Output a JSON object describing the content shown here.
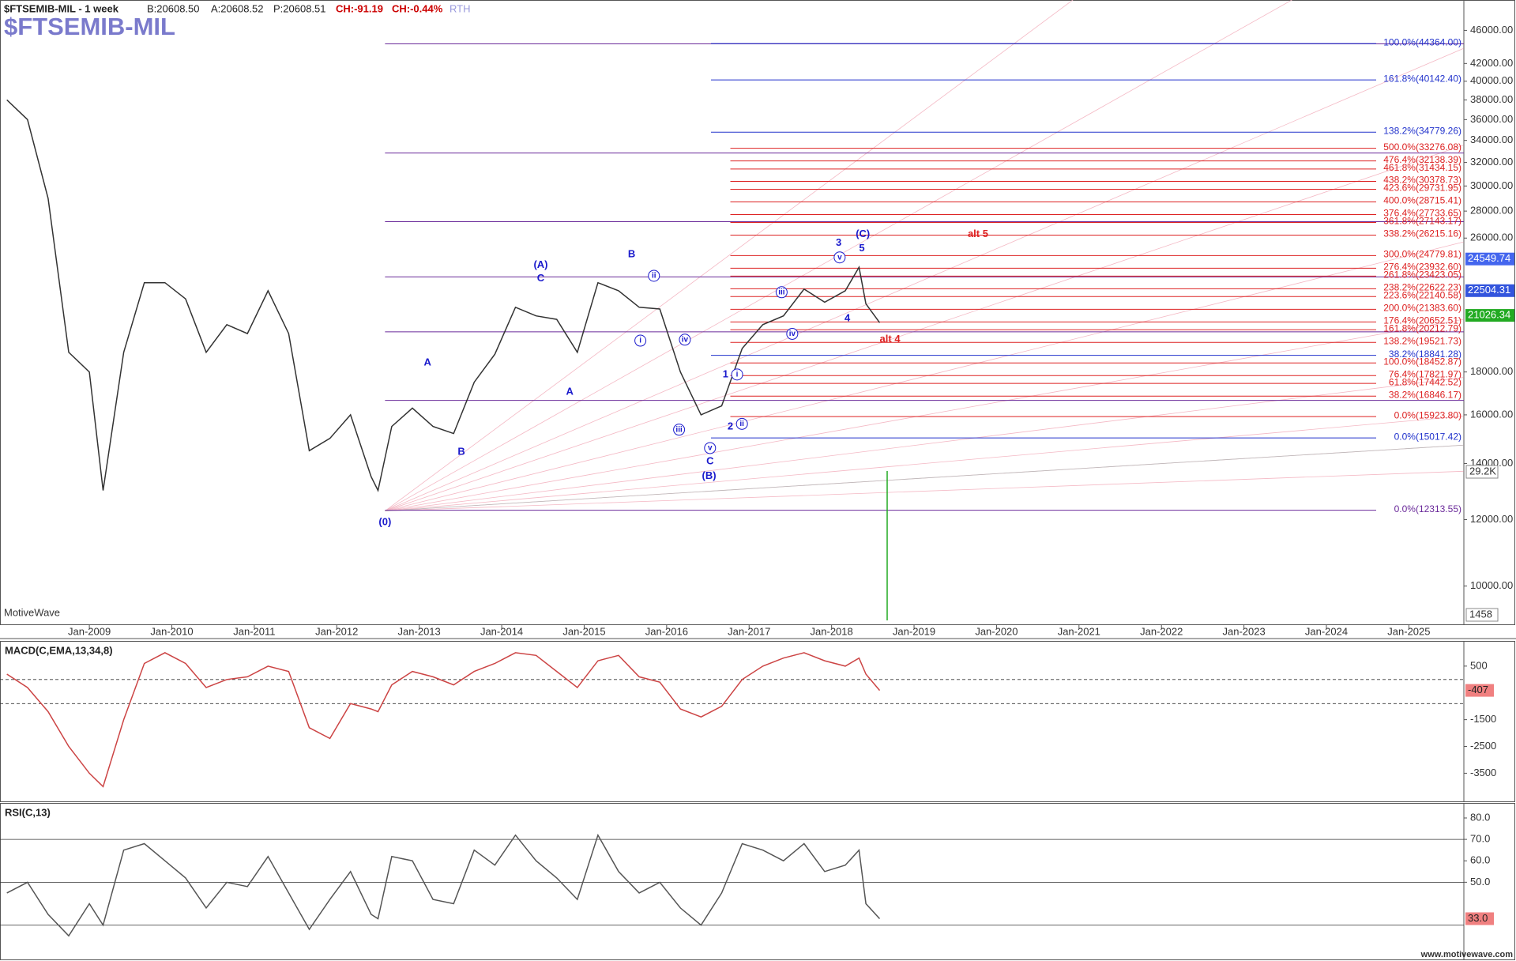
{
  "header": {
    "symbol": "$FTSEMIB-MIL - 1 week",
    "bid": "B:20608.50",
    "ask": "A:20608.52",
    "price": "P:20608.51",
    "change": "CH:-91.19",
    "change_pct": "CH:-0.44%",
    "session": "RTH",
    "watermark": "MotiveWave",
    "volume_label": "29.2K",
    "volume_scale": "1458",
    "footer": "www.motivewave.com"
  },
  "chart_data": [
    {
      "type": "line",
      "title": "$FTSEMIB-MIL",
      "log": true,
      "color": "#333333",
      "xlim": [
        "2007-12",
        "2025-09"
      ],
      "ylim": [
        9000,
        50000
      ],
      "xticks": [
        {
          "value": "2009-01",
          "label": "Jan-2009"
        },
        {
          "value": "2010-01",
          "label": "Jan-2010"
        },
        {
          "value": "2011-01",
          "label": "Jan-2011"
        },
        {
          "value": "2012-01",
          "label": "Jan-2012"
        },
        {
          "value": "2013-01",
          "label": "Jan-2013"
        },
        {
          "value": "2014-01",
          "label": "Jan-2014"
        },
        {
          "value": "2015-01",
          "label": "Jan-2015"
        },
        {
          "value": "2016-01",
          "label": "Jan-2016"
        },
        {
          "value": "2017-01",
          "label": "Jan-2017"
        },
        {
          "value": "2018-01",
          "label": "Jan-2018"
        },
        {
          "value": "2019-01",
          "label": "Jan-2019"
        },
        {
          "value": "2020-01",
          "label": "Jan-2020"
        },
        {
          "value": "2021-01",
          "label": "Jan-2021"
        },
        {
          "value": "2022-01",
          "label": "Jan-2022"
        },
        {
          "value": "2023-01",
          "label": "Jan-2023"
        },
        {
          "value": "2024-01",
          "label": "Jan-2024"
        },
        {
          "value": "2025-01",
          "label": "Jan-2025"
        }
      ],
      "yticks": [
        {
          "value": 46000,
          "label": "46000.00"
        },
        {
          "value": 42000,
          "label": "42000.00"
        },
        {
          "value": 40000,
          "label": "40000.00"
        },
        {
          "value": 38000,
          "label": "38000.00"
        },
        {
          "value": 36000,
          "label": "36000.00"
        },
        {
          "value": 34000,
          "label": "34000.00"
        },
        {
          "value": 32000,
          "label": "32000.00"
        },
        {
          "value": 30000,
          "label": "30000.00"
        },
        {
          "value": 28000,
          "label": "28000.00"
        },
        {
          "value": 26000,
          "label": "26000.00"
        },
        {
          "value": 18000,
          "label": "18000.00"
        },
        {
          "value": 16000,
          "label": "16000.00"
        },
        {
          "value": 14000,
          "label": "14000.00"
        },
        {
          "value": 12000,
          "label": "12000.00"
        },
        {
          "value": 10000,
          "label": "10000.00"
        }
      ],
      "x": [
        "2008-01",
        "2008-04",
        "2008-07",
        "2008-10",
        "2009-01",
        "2009-03",
        "2009-06",
        "2009-09",
        "2009-12",
        "2010-03",
        "2010-06",
        "2010-09",
        "2010-12",
        "2011-03",
        "2011-06",
        "2011-09",
        "2011-12",
        "2012-03",
        "2012-06",
        "2012-07",
        "2012-09",
        "2012-12",
        "2013-03",
        "2013-06",
        "2013-09",
        "2013-12",
        "2014-03",
        "2014-06",
        "2014-09",
        "2014-12",
        "2015-03",
        "2015-06",
        "2015-09",
        "2015-12",
        "2016-03",
        "2016-06",
        "2016-09",
        "2016-12",
        "2017-03",
        "2017-06",
        "2017-09",
        "2017-12",
        "2018-03",
        "2018-05",
        "2018-06",
        "2018-08"
      ],
      "values": [
        38000,
        36000,
        29000,
        19000,
        18000,
        13000,
        19000,
        23000,
        23000,
        22000,
        19000,
        20500,
        20000,
        22500,
        20000,
        14500,
        15000,
        16000,
        13500,
        13000,
        15500,
        16300,
        15500,
        15200,
        17500,
        18900,
        21500,
        21000,
        20800,
        19000,
        23000,
        22500,
        21500,
        21400,
        18000,
        16000,
        16400,
        19200,
        20500,
        21000,
        22600,
        21800,
        22500,
        24000,
        21700,
        20608
      ],
      "level_sets": [
        {
          "color": "#6a2a9a",
          "levels": [
            44320,
            32840,
            27200,
            23370,
            20100,
            16650,
            {
              "value": 12313.55,
              "label": "0.0%(12313.55)"
            }
          ]
        },
        {
          "color": "#2233cc",
          "levels": [
            {
              "value": 44364,
              "label": "100.0%(44364.00)"
            },
            {
              "value": 40142.4,
              "label": "161.8%(40142.40)"
            },
            {
              "value": 34779.26,
              "label": "138.2%(34779.26)"
            },
            {
              "value": 18841.28,
              "label": "38.2%(18841.28)"
            },
            {
              "value": 15017.42,
              "label": "0.0%(15017.42)"
            }
          ]
        },
        {
          "color": "#dd2222",
          "levels": [
            {
              "value": 33276.08,
              "label": "500.0%(33276.08)"
            },
            {
              "value": 32138.39,
              "label": "476.4%(32138.39)"
            },
            {
              "value": 31434.15,
              "label": "461.8%(31434.15)"
            },
            {
              "value": 30378.73,
              "label": "438.2%(30378.73)"
            },
            {
              "value": 29731.95,
              "label": "423.6%(29731.95)"
            },
            {
              "value": 28715.41,
              "label": "400.0%(28715.41)"
            },
            {
              "value": 27733.65,
              "label": "376.4%(27733.65)"
            },
            {
              "value": 27143.17,
              "label": "361.8%(27143.17)"
            },
            {
              "value": 26215.16,
              "label": "338.2%(26215.16)"
            },
            {
              "value": 24779.81,
              "label": "300.0%(24779.81)"
            },
            {
              "value": 23932.6,
              "label": "276.4%(23932.60)"
            },
            {
              "value": 23423.05,
              "label": "261.8%(23423.05)"
            },
            {
              "value": 22622.23,
              "label": "238.2%(22622.23)"
            },
            {
              "value": 22140.58,
              "label": "223.6%(22140.58)"
            },
            {
              "value": 21383.6,
              "label": "200.0%(21383.60)"
            },
            {
              "value": 20652.51,
              "label": "176.4%(20652.51)"
            },
            {
              "value": 20212.79,
              "label": "161.8%(20212.79)"
            },
            {
              "value": 19521.73,
              "label": "138.2%(19521.73)"
            },
            {
              "value": 18452.87,
              "label": "100.0%(18452.87)"
            },
            {
              "value": 17821.97,
              "label": "76.4%(17821.97)"
            },
            {
              "value": 17442.52,
              "label": "61.8%(17442.52)"
            },
            {
              "value": 16846.17,
              "label": "38.2%(16846.17)"
            },
            {
              "value": 15923.8,
              "label": "0.0%(15923.80)"
            }
          ]
        }
      ],
      "price_markers": {
        "values": [
          24549.74,
          22504.31,
          21026.34
        ],
        "colors": [
          "#4466ee",
          "#3355dd",
          "#22aa22"
        ]
      },
      "annotations": [
        {
          "text": "(0)",
          "color": "#1a1acc"
        },
        {
          "text": "A",
          "color": "#1a1acc"
        },
        {
          "text": "B",
          "color": "#1a1acc"
        },
        {
          "text": "(A)",
          "color": "#1a1acc"
        },
        {
          "text": "C",
          "color": "#1a1acc"
        },
        {
          "text": "A",
          "color": "#1a1acc"
        },
        {
          "text": "B",
          "color": "#1a1acc"
        },
        {
          "text": "i",
          "color": "#1a1acc",
          "circled": true
        },
        {
          "text": "ii",
          "color": "#1a1acc",
          "circled": true
        },
        {
          "text": "iv",
          "color": "#1a1acc",
          "circled": true
        },
        {
          "text": "iii",
          "color": "#1a1acc",
          "circled": true
        },
        {
          "text": "v",
          "color": "#1a1acc",
          "circled": true
        },
        {
          "text": "C",
          "color": "#1a1acc"
        },
        {
          "text": "(B)",
          "color": "#1a1acc"
        },
        {
          "text": "1",
          "color": "#1a1acc"
        },
        {
          "text": "i",
          "color": "#1a1acc",
          "circled": true
        },
        {
          "text": "2",
          "color": "#1a1acc"
        },
        {
          "text": "ii",
          "color": "#1a1acc",
          "circled": true
        },
        {
          "text": "iii",
          "color": "#1a1acc",
          "circled": true
        },
        {
          "text": "iv",
          "color": "#1a1acc",
          "circled": true
        },
        {
          "text": "3",
          "color": "#1a1acc"
        },
        {
          "text": "v",
          "color": "#1a1acc",
          "circled": true
        },
        {
          "text": "(C)",
          "color": "#1a1acc"
        },
        {
          "text": "5",
          "color": "#1a1acc"
        },
        {
          "text": "4",
          "color": "#1a1acc"
        },
        {
          "text": "alt 5",
          "color": "#dd2222"
        },
        {
          "text": "alt 4",
          "color": "#dd2222"
        }
      ]
    },
    {
      "type": "line",
      "title": "MACD(C,EMA,13,34,8)",
      "color": "#cc4444",
      "xlim": [
        "2007-12",
        "2025-09"
      ],
      "ylim": [
        -4550,
        1440
      ],
      "yticks": [
        500,
        -1500,
        -2500,
        -3500
      ],
      "hlines": [
        0,
        -900
      ],
      "current": -407,
      "x": [
        "2008-01",
        "2008-04",
        "2008-07",
        "2008-10",
        "2009-01",
        "2009-03",
        "2009-06",
        "2009-09",
        "2009-12",
        "2010-03",
        "2010-06",
        "2010-09",
        "2010-12",
        "2011-03",
        "2011-06",
        "2011-09",
        "2011-12",
        "2012-03",
        "2012-06",
        "2012-07",
        "2012-09",
        "2012-12",
        "2013-03",
        "2013-06",
        "2013-09",
        "2013-12",
        "2014-03",
        "2014-06",
        "2014-09",
        "2014-12",
        "2015-03",
        "2015-06",
        "2015-09",
        "2015-12",
        "2016-03",
        "2016-06",
        "2016-09",
        "2016-12",
        "2017-03",
        "2017-06",
        "2017-09",
        "2017-12",
        "2018-03",
        "2018-05",
        "2018-06",
        "2018-08"
      ],
      "values": [
        200,
        -300,
        -1200,
        -2500,
        -3500,
        -4000,
        -1500,
        600,
        1000,
        600,
        -300,
        0,
        100,
        500,
        300,
        -1800,
        -2200,
        -900,
        -1100,
        -1200,
        -200,
        300,
        100,
        -200,
        300,
        600,
        1000,
        900,
        300,
        -300,
        700,
        900,
        100,
        -100,
        -1100,
        -1400,
        -1000,
        0,
        500,
        800,
        1000,
        700,
        500,
        800,
        200,
        -407
      ]
    },
    {
      "type": "line",
      "title": "RSI(C,13)",
      "color": "#555555",
      "xlim": [
        "2007-12",
        "2025-09"
      ],
      "ylim": [
        14,
        87
      ],
      "yticks": [
        {
          "value": 80,
          "label": "80.0"
        },
        {
          "value": 70,
          "label": "70.0"
        },
        {
          "value": 60,
          "label": "60.0"
        },
        {
          "value": 50,
          "label": "50.0"
        }
      ],
      "hlines": [
        70,
        50,
        30
      ],
      "current": {
        "value": 33,
        "label": "33.0"
      },
      "x": [
        "2008-01",
        "2008-04",
        "2008-07",
        "2008-10",
        "2009-01",
        "2009-03",
        "2009-06",
        "2009-09",
        "2009-12",
        "2010-03",
        "2010-06",
        "2010-09",
        "2010-12",
        "2011-03",
        "2011-06",
        "2011-09",
        "2011-12",
        "2012-03",
        "2012-06",
        "2012-07",
        "2012-09",
        "2012-12",
        "2013-03",
        "2013-06",
        "2013-09",
        "2013-12",
        "2014-03",
        "2014-06",
        "2014-09",
        "2014-12",
        "2015-03",
        "2015-06",
        "2015-09",
        "2015-12",
        "2016-03",
        "2016-06",
        "2016-09",
        "2016-12",
        "2017-03",
        "2017-06",
        "2017-09",
        "2017-12",
        "2018-03",
        "2018-05",
        "2018-06",
        "2018-08"
      ],
      "values": [
        45,
        50,
        35,
        25,
        40,
        30,
        65,
        68,
        60,
        52,
        38,
        50,
        48,
        62,
        45,
        28,
        42,
        55,
        35,
        33,
        62,
        60,
        42,
        40,
        65,
        58,
        72,
        60,
        52,
        42,
        72,
        55,
        45,
        50,
        38,
        30,
        45,
        68,
        65,
        60,
        68,
        55,
        58,
        65,
        40,
        33
      ]
    }
  ]
}
